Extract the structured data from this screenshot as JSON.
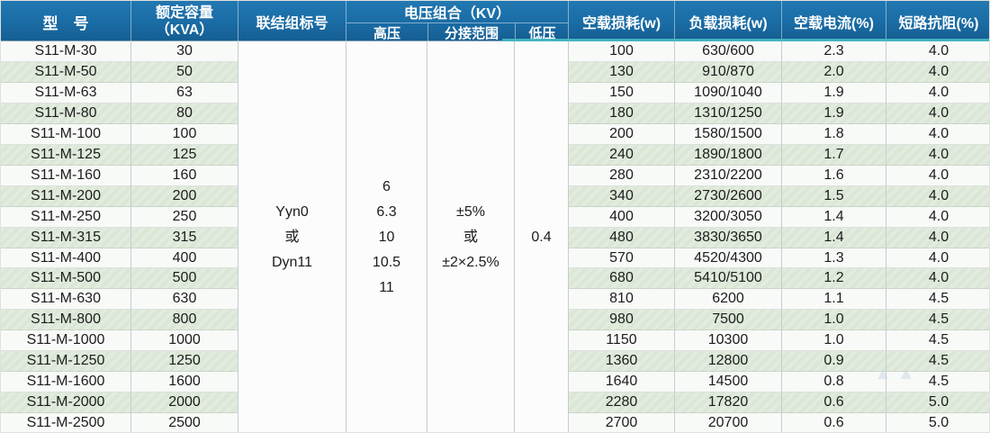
{
  "header": {
    "model": "型　号",
    "capacity_line1": "额定容量",
    "capacity_line2": "（KVA）",
    "vector_group": "联结组标号",
    "voltage_group": "电压组合（KV）",
    "hv": "高压",
    "tap_range": "分接范围",
    "lv": "低压",
    "no_load_loss": "空载损耗(w)",
    "load_loss": "负载损耗(w)",
    "no_load_current": "空载电流(%)",
    "impedance": "短路抗阻(%)"
  },
  "merged_cells": {
    "vector_group_lines": [
      "Yyn0",
      "或",
      "Dyn11"
    ],
    "hv_lines": [
      "6",
      "6.3",
      "10",
      "10.5",
      "11"
    ],
    "tap_range_lines": [
      "±5%",
      "或",
      "±2×2.5%"
    ],
    "lv_value": "0.4"
  },
  "rows": [
    {
      "model": "S11-M-30",
      "capacity": "30",
      "no_load_loss": "100",
      "load_loss": "630/600",
      "no_load_current": "2.3",
      "impedance": "4.0"
    },
    {
      "model": "S11-M-50",
      "capacity": "50",
      "no_load_loss": "130",
      "load_loss": "910/870",
      "no_load_current": "2.0",
      "impedance": "4.0"
    },
    {
      "model": "S11-M-63",
      "capacity": "63",
      "no_load_loss": "150",
      "load_loss": "1090/1040",
      "no_load_current": "1.9",
      "impedance": "4.0"
    },
    {
      "model": "S11-M-80",
      "capacity": "80",
      "no_load_loss": "180",
      "load_loss": "1310/1250",
      "no_load_current": "1.9",
      "impedance": "4.0"
    },
    {
      "model": "S11-M-100",
      "capacity": "100",
      "no_load_loss": "200",
      "load_loss": "1580/1500",
      "no_load_current": "1.8",
      "impedance": "4.0"
    },
    {
      "model": "S11-M-125",
      "capacity": "125",
      "no_load_loss": "240",
      "load_loss": "1890/1800",
      "no_load_current": "1.7",
      "impedance": "4.0"
    },
    {
      "model": "S11-M-160",
      "capacity": "160",
      "no_load_loss": "280",
      "load_loss": "2310/2200",
      "no_load_current": "1.6",
      "impedance": "4.0"
    },
    {
      "model": "S11-M-200",
      "capacity": "200",
      "no_load_loss": "340",
      "load_loss": "2730/2600",
      "no_load_current": "1.5",
      "impedance": "4.0"
    },
    {
      "model": "S11-M-250",
      "capacity": "250",
      "no_load_loss": "400",
      "load_loss": "3200/3050",
      "no_load_current": "1.4",
      "impedance": "4.0"
    },
    {
      "model": "S11-M-315",
      "capacity": "315",
      "no_load_loss": "480",
      "load_loss": "3830/3650",
      "no_load_current": "1.4",
      "impedance": "4.0"
    },
    {
      "model": "S11-M-400",
      "capacity": "400",
      "no_load_loss": "570",
      "load_loss": "4520/4300",
      "no_load_current": "1.3",
      "impedance": "4.0"
    },
    {
      "model": "S11-M-500",
      "capacity": "500",
      "no_load_loss": "680",
      "load_loss": "5410/5100",
      "no_load_current": "1.2",
      "impedance": "4.0"
    },
    {
      "model": "S11-M-630",
      "capacity": "630",
      "no_load_loss": "810",
      "load_loss": "6200",
      "no_load_current": "1.1",
      "impedance": "4.5"
    },
    {
      "model": "S11-M-800",
      "capacity": "800",
      "no_load_loss": "980",
      "load_loss": "7500",
      "no_load_current": "1.0",
      "impedance": "4.5"
    },
    {
      "model": "S11-M-1000",
      "capacity": "1000",
      "no_load_loss": "1150",
      "load_loss": "10300",
      "no_load_current": "1.0",
      "impedance": "4.5"
    },
    {
      "model": "S11-M-1250",
      "capacity": "1250",
      "no_load_loss": "1360",
      "load_loss": "12800",
      "no_load_current": "0.9",
      "impedance": "4.5"
    },
    {
      "model": "S11-M-1600",
      "capacity": "1600",
      "no_load_loss": "1640",
      "load_loss": "14500",
      "no_load_current": "0.8",
      "impedance": "4.5"
    },
    {
      "model": "S11-M-2000",
      "capacity": "2000",
      "no_load_loss": "2280",
      "load_loss": "17820",
      "no_load_current": "0.6",
      "impedance": "5.0"
    },
    {
      "model": "S11-M-2500",
      "capacity": "2500",
      "no_load_loss": "2700",
      "load_loss": "20700",
      "no_load_current": "0.6",
      "impedance": "5.0"
    }
  ],
  "watermarks": {
    "mirrored_line1": "EI'S QUALITY",
    "mirrored_line2": "TRUST",
    "mirrored_cn": "产品描述",
    "mirrored_logo": "▲▲"
  },
  "colors": {
    "header_bg": "#1a6ca5",
    "header_text": "#ffffff",
    "accent_teal": "#45bcc2",
    "row_green": "#dfe9dc",
    "row_white": "#f8faf8",
    "grid_line": "#c6ccd1",
    "body_text": "#1c1c1c"
  }
}
